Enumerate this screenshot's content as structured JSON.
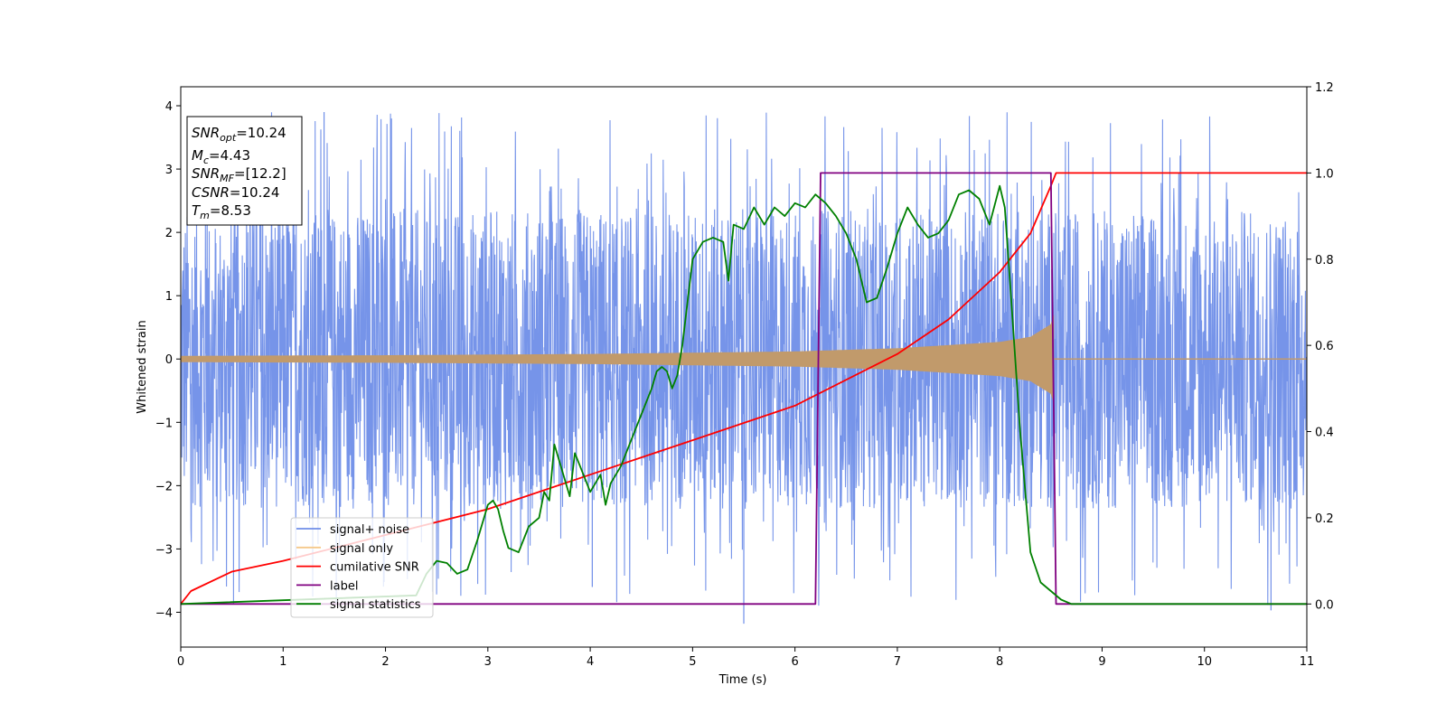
{
  "chart_data": {
    "type": "line",
    "xlabel": "Time (s)",
    "ylabel": "Whitened strain",
    "xlim": [
      0,
      11
    ],
    "ylim": [
      -4.55,
      4.3
    ],
    "y2lim": [
      -0.1,
      1.2
    ],
    "x_ticks": [
      "0",
      "1",
      "2",
      "3",
      "4",
      "5",
      "6",
      "7",
      "8",
      "9",
      "10",
      "11"
    ],
    "y_ticks": [
      "4",
      "3",
      "2",
      "1",
      "0",
      "−1",
      "−2",
      "−3",
      "−4"
    ],
    "y2_ticks": [
      "1.2",
      "1.0",
      "0.8",
      "0.6",
      "0.4",
      "0.2",
      "0.0"
    ],
    "info_box": [
      {
        "base": "SNR",
        "sub": "opt",
        "rest": "=10.24"
      },
      {
        "base": "M",
        "sub": "c",
        "rest": "=4.43"
      },
      {
        "base": "SNR",
        "sub": "MF",
        "rest": "=[12.2]"
      },
      {
        "base": "CSNR",
        "sub": "",
        "rest": "=10.24"
      },
      {
        "base": "T",
        "sub": "m",
        "rest": "=8.53"
      }
    ],
    "legend": {
      "position": "lower-left",
      "entries": [
        {
          "label": "signal+ noise",
          "color": "#6f8ee8"
        },
        {
          "label": "signal only",
          "color": "#f5c98a"
        },
        {
          "label": "cumilative SNR",
          "color": "#ff0000"
        },
        {
          "label": "label",
          "color": "#800080"
        },
        {
          "label": "signal statistics",
          "color": "#008000"
        }
      ]
    },
    "series": [
      {
        "name": "signal+ noise",
        "axis": "left",
        "color": "#6f8ee8",
        "style": "dense noise, roughly symmetric about 0, typical envelope ±2.5, spikes to about ±3.9",
        "envelope": {
          "typical": 2.5,
          "max": 3.9,
          "min": -4.18
        }
      },
      {
        "name": "signal only",
        "axis": "left",
        "color": "#c19a6b",
        "style": "chirp with growing amplitude, ending at merger time",
        "amplitude_x": [
          0,
          2,
          4,
          6,
          7,
          8,
          8.3,
          8.5,
          8.53
        ],
        "amplitude_y": [
          0.05,
          0.06,
          0.08,
          0.12,
          0.17,
          0.27,
          0.35,
          0.55,
          0.7
        ],
        "end_time": 8.53
      },
      {
        "name": "cumilative SNR",
        "axis": "right",
        "color": "#ff0000",
        "x": [
          0,
          0.1,
          0.5,
          1,
          2,
          3,
          4,
          5,
          6,
          7,
          7.5,
          8,
          8.3,
          8.5,
          8.55,
          11
        ],
        "y": [
          0.0,
          0.03,
          0.075,
          0.1,
          0.16,
          0.22,
          0.3,
          0.38,
          0.46,
          0.58,
          0.66,
          0.77,
          0.86,
          0.97,
          1.0,
          1.0
        ]
      },
      {
        "name": "label",
        "axis": "right",
        "color": "#800080",
        "x": [
          0,
          6.2,
          6.25,
          8.5,
          8.55,
          11
        ],
        "y": [
          0.0,
          0.0,
          1.0,
          1.0,
          0.0,
          0.0
        ]
      },
      {
        "name": "signal statistics",
        "axis": "right",
        "color": "#008000",
        "x": [
          0,
          2.3,
          2.4,
          2.5,
          2.6,
          2.7,
          2.8,
          2.9,
          3.0,
          3.05,
          3.1,
          3.15,
          3.2,
          3.3,
          3.4,
          3.5,
          3.55,
          3.6,
          3.65,
          3.7,
          3.8,
          3.85,
          3.9,
          4.0,
          4.1,
          4.15,
          4.2,
          4.3,
          4.4,
          4.5,
          4.6,
          4.65,
          4.7,
          4.75,
          4.8,
          4.85,
          4.9,
          5.0,
          5.1,
          5.2,
          5.3,
          5.35,
          5.4,
          5.5,
          5.6,
          5.7,
          5.8,
          5.9,
          6.0,
          6.1,
          6.2,
          6.25,
          6.3,
          6.4,
          6.5,
          6.6,
          6.7,
          6.8,
          6.9,
          7.0,
          7.1,
          7.2,
          7.3,
          7.4,
          7.5,
          7.6,
          7.7,
          7.8,
          7.9,
          8.0,
          8.05,
          8.1,
          8.2,
          8.3,
          8.4,
          8.5,
          8.6,
          8.7,
          8.8,
          11
        ],
        "y": [
          0.0,
          0.02,
          0.07,
          0.1,
          0.095,
          0.07,
          0.08,
          0.15,
          0.23,
          0.24,
          0.22,
          0.17,
          0.13,
          0.12,
          0.18,
          0.2,
          0.26,
          0.24,
          0.37,
          0.33,
          0.25,
          0.35,
          0.32,
          0.26,
          0.3,
          0.23,
          0.28,
          0.32,
          0.38,
          0.44,
          0.5,
          0.54,
          0.55,
          0.54,
          0.5,
          0.53,
          0.6,
          0.8,
          0.84,
          0.85,
          0.84,
          0.75,
          0.88,
          0.87,
          0.92,
          0.88,
          0.92,
          0.9,
          0.93,
          0.92,
          0.95,
          0.94,
          0.93,
          0.9,
          0.86,
          0.8,
          0.7,
          0.71,
          0.78,
          0.86,
          0.92,
          0.88,
          0.85,
          0.86,
          0.89,
          0.95,
          0.96,
          0.94,
          0.88,
          0.97,
          0.92,
          0.75,
          0.4,
          0.12,
          0.05,
          0.03,
          0.01,
          0.0,
          0.0,
          0.0
        ]
      }
    ]
  }
}
